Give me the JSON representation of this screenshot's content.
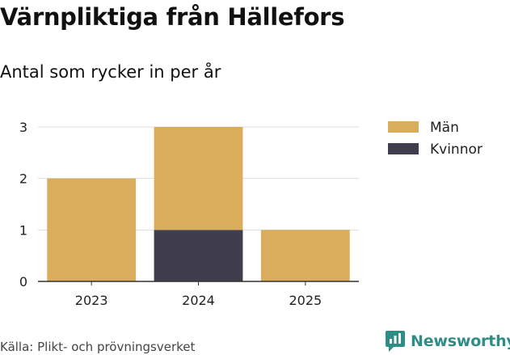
{
  "title": "Värnpliktiga från Hällefors",
  "subtitle": "Antal som rycker in per år",
  "source": "Källa: Plikt- och prövningsverket",
  "brand": {
    "name": "Newsworthy",
    "icon": "newsworthy-logo-icon",
    "color": "#2e8d86"
  },
  "chart_data": {
    "type": "bar",
    "stacked": true,
    "categories": [
      "2023",
      "2024",
      "2025"
    ],
    "series": [
      {
        "name": "Kvinnor",
        "values": [
          0,
          1,
          0
        ],
        "color": "#403e4d"
      },
      {
        "name": "Män",
        "values": [
          2,
          2,
          1
        ],
        "color": "#d9ad5b"
      }
    ],
    "legend_order": [
      "Män",
      "Kvinnor"
    ],
    "y_ticks": [
      0,
      1,
      2,
      3
    ],
    "ylim": [
      0,
      3
    ],
    "grid": true,
    "legend_position": "right"
  }
}
